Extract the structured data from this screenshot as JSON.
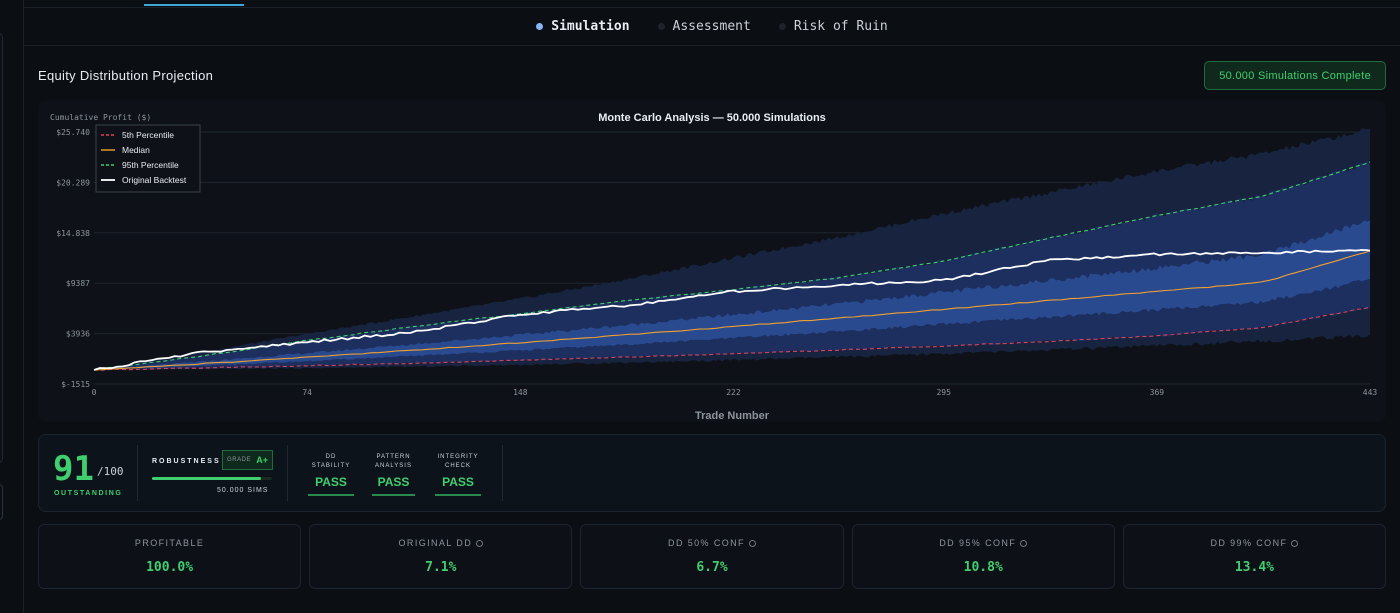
{
  "tabs": [
    {
      "label": "Simulation",
      "active": true
    },
    {
      "label": "Assessment",
      "active": false
    },
    {
      "label": "Risk of Ruin",
      "active": false
    }
  ],
  "section": {
    "title": "Equity Distribution Projection",
    "badge": "50.000 Simulations Complete"
  },
  "chart_data": {
    "type": "line",
    "title": "Monte Carlo Analysis — 50.000 Simulations",
    "xlabel": "Trade Number",
    "ylabel": "Cumulative Profit ($)",
    "xlim": [
      0,
      443
    ],
    "ylim": [
      -1515,
      25740
    ],
    "x_ticks": [
      "0",
      "74",
      "148",
      "222",
      "295",
      "369",
      "443"
    ],
    "y_ticks": [
      {
        "value": 25740,
        "label": "$25.740"
      },
      {
        "value": 20289,
        "label": "$20.289"
      },
      {
        "value": 14838,
        "label": "$14.838"
      },
      {
        "value": 9387,
        "label": "$9387"
      },
      {
        "value": 3936,
        "label": "$3936"
      },
      {
        "value": -1515,
        "label": "$-1515"
      }
    ],
    "grid": true,
    "legend_position": "top-left",
    "x": [
      0,
      37,
      74,
      111,
      148,
      185,
      222,
      259,
      295,
      332,
      369,
      406,
      443
    ],
    "series": [
      {
        "name": "5th Percentile",
        "style": "dashed",
        "color": "#e0405a",
        "values": [
          0,
          220,
          460,
          740,
          1050,
          1390,
          1760,
          2160,
          2600,
          3100,
          3700,
          4600,
          6800
        ]
      },
      {
        "name": "Median",
        "style": "solid",
        "color": "#f0a030",
        "values": [
          0,
          660,
          1380,
          2140,
          2950,
          3800,
          4700,
          5630,
          6560,
          7520,
          8480,
          9500,
          12900
        ]
      },
      {
        "name": "95th Percentile",
        "style": "dashed",
        "color": "#3fcf6e",
        "values": [
          0,
          1500,
          3200,
          4700,
          6100,
          7500,
          8700,
          10000,
          11800,
          14300,
          16700,
          18800,
          22500
        ]
      },
      {
        "name": "Original Backtest",
        "style": "solid",
        "color": "#ffffff",
        "values": [
          0,
          1900,
          3000,
          4100,
          6000,
          7000,
          8500,
          9200,
          9700,
          11900,
          12500,
          12700,
          12900
        ]
      }
    ],
    "bands": [
      {
        "label": "p1-p99",
        "color": "#17233f",
        "lower": [
          0,
          80,
          200,
          360,
          560,
          800,
          1080,
          1400,
          1760,
          2160,
          2620,
          3120,
          3700
        ],
        "upper": [
          0,
          1900,
          3900,
          5800,
          7700,
          9800,
          12100,
          14400,
          16900,
          19200,
          21500,
          23400,
          26000
        ]
      },
      {
        "label": "p5-p95",
        "color": "#1c2f5e",
        "lower": [
          0,
          220,
          460,
          740,
          1050,
          1390,
          1760,
          2160,
          2600,
          3100,
          3700,
          4600,
          6800
        ],
        "upper": [
          0,
          1500,
          3200,
          4700,
          6100,
          7500,
          8700,
          10000,
          11800,
          14300,
          16700,
          18800,
          22500
        ]
      },
      {
        "label": "p25-p75",
        "color": "#2a4a90",
        "lower": [
          0,
          450,
          960,
          1520,
          2120,
          2760,
          3450,
          4180,
          4940,
          5720,
          6520,
          7380,
          9800
        ],
        "upper": [
          0,
          880,
          1820,
          2790,
          3800,
          4860,
          5980,
          7160,
          8400,
          9700,
          11050,
          12450,
          16200
        ]
      }
    ]
  },
  "score": {
    "value": "91",
    "denominator": "/100",
    "label": "OUTSTANDING",
    "robustness_label": "ROBUSTNESS",
    "grade_prefix": "GRADE",
    "grade": "A+",
    "robustness_fill": 0.91,
    "sims": "50.000 SIMS",
    "checks": [
      {
        "title": "DD\nSTABILITY",
        "result": "PASS"
      },
      {
        "title": "PATTERN\nANALYSIS",
        "result": "PASS"
      },
      {
        "title": "INTEGRITY\nCHECK",
        "result": "PASS"
      }
    ]
  },
  "stats": [
    {
      "label": "PROFITABLE",
      "value": "100.0%",
      "info": false
    },
    {
      "label": "ORIGINAL DD",
      "value": "7.1%",
      "info": true
    },
    {
      "label": "DD 50% CONF",
      "value": "6.7%",
      "info": true
    },
    {
      "label": "DD 95% CONF",
      "value": "10.8%",
      "info": true
    },
    {
      "label": "DD 99% CONF",
      "value": "13.4%",
      "info": true
    }
  ],
  "colors": {
    "accent_green": "#3fcf6e",
    "accent_blue": "#8ab4f8",
    "background": "#0b0e13"
  }
}
